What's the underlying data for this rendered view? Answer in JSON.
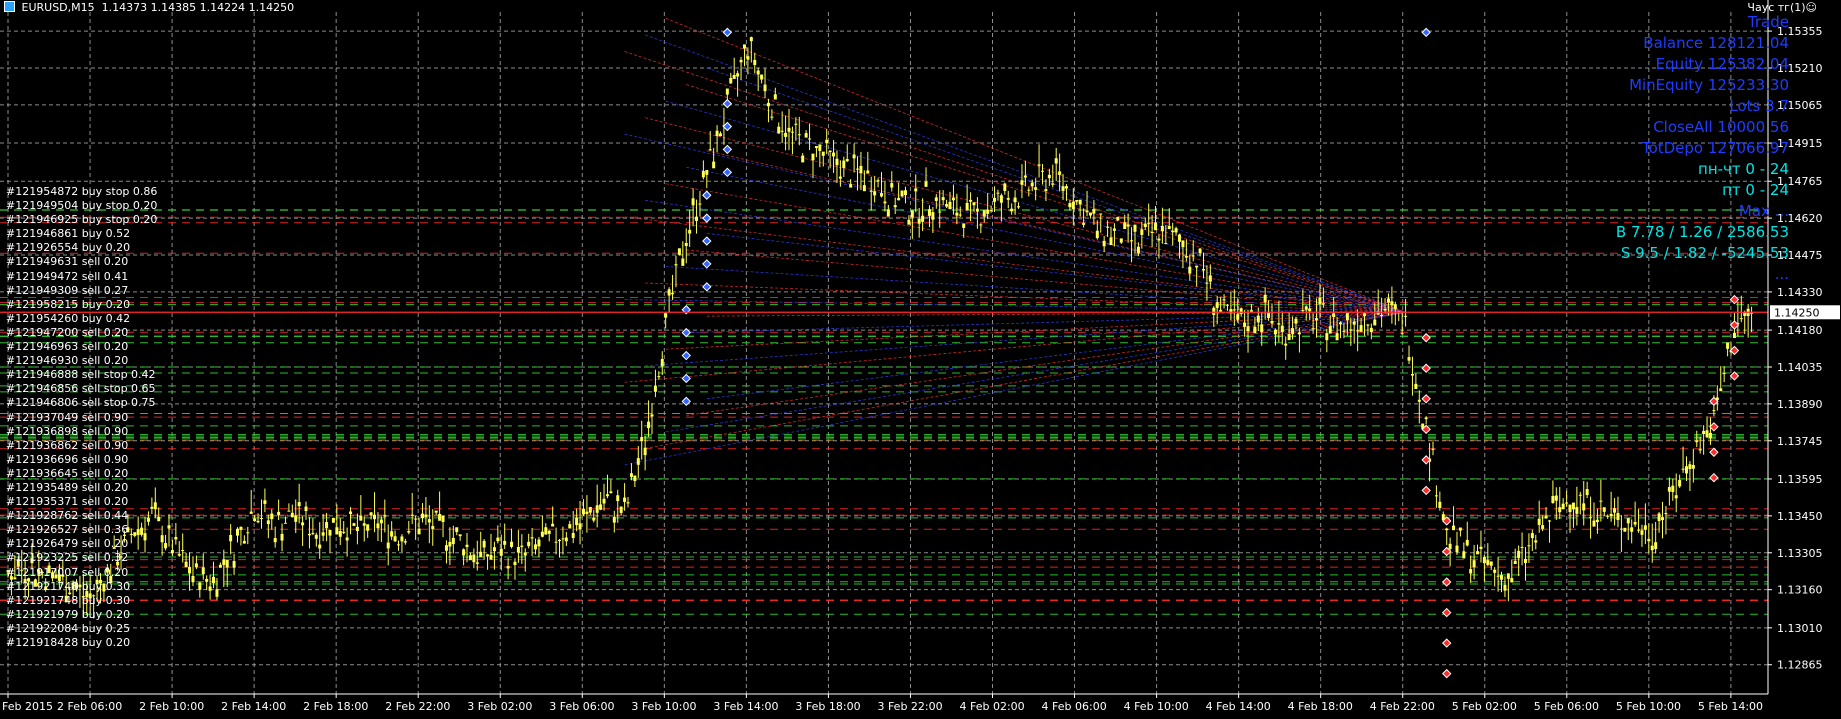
{
  "header": {
    "symbol_timeframe": "EURUSD,M15",
    "ohlc": "1.14373 1.14385 1.14224 1.14250",
    "expert_name": "Чаус тг(1)☺"
  },
  "panel": [
    {
      "text": "Trade",
      "color": "#1f3cff"
    },
    {
      "text": "Balance  128121.04",
      "color": "#1f3cff"
    },
    {
      "text": "Equity  125382.04",
      "color": "#1f3cff"
    },
    {
      "text": "MinEquity  125233.30",
      "color": "#1f3cff"
    },
    {
      "text": "Lots  3.7",
      "color": "#1f3cff"
    },
    {
      "text": "CloseAll  10000  56",
      "color": "#1f3cff"
    },
    {
      "text": "TotDepo  127066.97",
      "color": "#1f3cff"
    },
    {
      "text": "пн-чт  0 - 24",
      "color": "#00e5e5"
    },
    {
      "text": "пт  0 - 24",
      "color": "#00e5e5"
    },
    {
      "text": "Max  ...",
      "color": "#1f3cff"
    },
    {
      "text": "B  7.78 / 1.26 / 2586.53",
      "color": "#00e5e5"
    },
    {
      "text": "S  9.5 / 1.82 / -5245.53",
      "color": "#00e5e5"
    },
    {
      "text": "...",
      "color": "#1f3cff"
    }
  ],
  "orders": [
    "#121954872 buy stop 0.86",
    "#121949504 buy stop 0.20",
    "#121946925 buy stop 0.20",
    "#121946861 buy 0.52",
    "#121926554 buy 0.20",
    "#121949631 sell 0.20",
    "#121949472 sell 0.41",
    "#121949309 sell 0.27",
    "#121958215 buy 0.20",
    "#121954260 buy 0.42",
    "#121947200 sell 0.20",
    "#121946963 sell 0.20",
    "#121946930 sell 0.20",
    "#121946888 sell stop 0.42",
    "#121946856 sell stop 0.65",
    "#121946806 sell stop 0.75",
    "#121937049 sell 0.90",
    "#121936898 sell 0.90",
    "#121936862 sell 0.90",
    "#121936696 sell 0.90",
    "#121936645 sell 0.20",
    "#121935489 sell 0.20",
    "#121935371 sell 0.20",
    "#121928762 sell 0.44",
    "#121926527 sell 0.36",
    "#121926479 sell 0.20",
    "#121923225 sell 0.32",
    "#121917007 sell 0.20",
    "#121921748 buy 0.30",
    "#121921748 buy 0.30",
    "#121921979 buy 0.20",
    "#121922084 buy 0.25",
    "#121918428 buy 0.20"
  ],
  "chart_data": {
    "type": "line",
    "symbol": "EURUSD",
    "timeframe": "M15",
    "current_price": "1.14250",
    "ylim": [
      1.1275,
      1.1543
    ],
    "y_ticks": [
      "1.15355",
      "1.15210",
      "1.15065",
      "1.14915",
      "1.14765",
      "1.14620",
      "1.14475",
      "1.14330",
      "1.14180",
      "1.14035",
      "1.13890",
      "1.13745",
      "1.13595",
      "1.13450",
      "1.13305",
      "1.13160",
      "1.13010",
      "1.12865"
    ],
    "x_ticks": [
      "Feb 2015",
      "2 Feb 06:00",
      "2 Feb 10:00",
      "2 Feb 14:00",
      "2 Feb 18:00",
      "2 Feb 22:00",
      "3 Feb 02:00",
      "3 Feb 06:00",
      "3 Feb 10:00",
      "3 Feb 14:00",
      "3 Feb 18:00",
      "3 Feb 22:00",
      "4 Feb 02:00",
      "4 Feb 06:00",
      "4 Feb 10:00",
      "4 Feb 14:00",
      "4 Feb 18:00",
      "4 Feb 22:00",
      "5 Feb 02:00",
      "5 Feb 06:00",
      "5 Feb 10:00",
      "5 Feb 14:00"
    ],
    "x": [
      0,
      1,
      2,
      3,
      4,
      5,
      6,
      7,
      8,
      9,
      10,
      11,
      12,
      13,
      14,
      15,
      16,
      17,
      18,
      19,
      20,
      21,
      22,
      23,
      24,
      25,
      26,
      27,
      28,
      29,
      30,
      31,
      32,
      33,
      34,
      35,
      36,
      37,
      38,
      39,
      40,
      41,
      42,
      43,
      44,
      45,
      46,
      47,
      48,
      49,
      50,
      51,
      52,
      53,
      54,
      55,
      56,
      57,
      58,
      59,
      60,
      61,
      62,
      63,
      64,
      65,
      66,
      67,
      68,
      69,
      70,
      71,
      72,
      73,
      74,
      75,
      76,
      77,
      78,
      79,
      80,
      81,
      82,
      83,
      84,
      85
    ],
    "series": [
      {
        "color": "#ffff55",
        "values": [
          1.1323,
          1.1325,
          1.1322,
          1.1318,
          1.1312,
          1.1325,
          1.1338,
          1.1345,
          1.1333,
          1.1322,
          1.132,
          1.1333,
          1.1349,
          1.1341,
          1.1346,
          1.1339,
          1.1343,
          1.1339,
          1.1342,
          1.1338,
          1.1343,
          1.134,
          1.1335,
          1.1329,
          1.1332,
          1.1329,
          1.1334,
          1.1339,
          1.1343,
          1.1352,
          1.1346,
          1.1375,
          1.142,
          1.1455,
          1.148,
          1.1505,
          1.153,
          1.151,
          1.1495,
          1.149,
          1.1485,
          1.148,
          1.1478,
          1.147,
          1.1466,
          1.147,
          1.1465,
          1.1463,
          1.1468,
          1.147,
          1.1476,
          1.148,
          1.1468,
          1.1458,
          1.1456,
          1.1452,
          1.1458,
          1.1452,
          1.1445,
          1.1425,
          1.142,
          1.1425,
          1.1418,
          1.1422,
          1.1423,
          1.1419,
          1.1424,
          1.1426,
          1.142,
          1.138,
          1.1338,
          1.1331,
          1.1325,
          1.132,
          1.1332,
          1.1345,
          1.1352,
          1.135,
          1.1344,
          1.1342,
          1.1338,
          1.1353,
          1.137,
          1.1382,
          1.142,
          1.1425
        ]
      }
    ],
    "grid": true,
    "legend": "none"
  }
}
